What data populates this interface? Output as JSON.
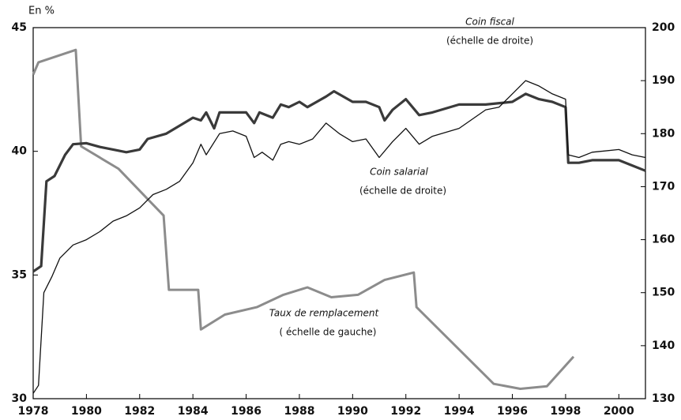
{
  "chart_data": {
    "type": "line",
    "y_label": "En %",
    "xlim": [
      1978,
      2001
    ],
    "xticks": [
      1978,
      1980,
      1982,
      1984,
      1986,
      1988,
      1990,
      1992,
      1994,
      1996,
      1998,
      2000
    ],
    "ylim": [
      30,
      45
    ],
    "yticks": [
      30,
      35,
      40,
      45
    ],
    "y2lim": [
      130,
      200
    ],
    "y2ticks": [
      130,
      140,
      150,
      160,
      170,
      180,
      190,
      200
    ],
    "annotations": [
      "Coin fiscal",
      "(échelle de droite)",
      "Coin salarial",
      "(échelle de droite)",
      "Taux de remplacement",
      "( échelle de gauche)"
    ],
    "series": [
      {
        "name": "Taux de remplacement",
        "color": "#8c8c8c",
        "width": 3,
        "axis": "y",
        "x": [
          1978,
          1978.2,
          1979.6,
          1979.8,
          1981.2,
          1982.9,
          1983.1,
          1984.2,
          1984.3,
          1985.2,
          1986.4,
          1987.4,
          1988.3,
          1989.2,
          1990.2,
          1991.2,
          1992.3,
          1992.4,
          1995.3,
          1996.3,
          1997.3,
          1998.3
        ],
        "values": [
          43.1,
          43.6,
          44.1,
          40.2,
          39.3,
          37.4,
          34.4,
          34.4,
          32.8,
          33.4,
          33.7,
          34.2,
          34.5,
          34.1,
          34.2,
          34.8,
          35.1,
          33.7,
          30.6,
          30.4,
          30.5,
          31.7
        ]
      },
      {
        "name": "Coin fiscal",
        "color": "#3a3a3a",
        "width": 3.2,
        "axis": "y2",
        "x": [
          1978,
          1978.3,
          1978.5,
          1978.8,
          1979.2,
          1979.5,
          1980,
          1980.5,
          1981,
          1981.5,
          1982,
          1982.3,
          1983,
          1983.5,
          1984,
          1984.3,
          1984.5,
          1984.8,
          1985,
          1986,
          1986.3,
          1986.5,
          1987,
          1987.3,
          1987.6,
          1988,
          1988.3,
          1989,
          1989.3,
          1990,
          1990.5,
          1991,
          1991.2,
          1991.5,
          1992,
          1992.5,
          1993,
          1994,
          1995,
          1996,
          1996.5,
          1997,
          1997.5,
          1998,
          1998.1,
          1998.5,
          1999,
          2000,
          2000.5,
          2001
        ],
        "values": [
          154,
          155,
          171,
          172,
          176,
          178,
          178.2,
          177.5,
          177,
          176.5,
          177,
          179,
          180,
          181.5,
          183,
          182.5,
          184,
          181,
          184,
          184,
          182,
          184,
          183,
          185.5,
          185,
          186,
          185,
          187,
          188,
          186,
          186,
          185,
          182.5,
          184.5,
          186.5,
          183.5,
          184,
          185.5,
          185.5,
          186,
          187.5,
          186.5,
          186,
          185,
          174.5,
          174.5,
          175,
          175,
          174,
          173
        ]
      },
      {
        "name": "Coin salarial",
        "color": "#111111",
        "width": 1.3,
        "axis": "y2",
        "x": [
          1978,
          1978.2,
          1978.4,
          1978.7,
          1979,
          1979.5,
          1980,
          1980.5,
          1981,
          1981.5,
          1982,
          1982.5,
          1983,
          1983.5,
          1984,
          1984.3,
          1984.5,
          1985,
          1985.5,
          1986,
          1986.3,
          1986.6,
          1987,
          1987.3,
          1987.6,
          1988,
          1988.5,
          1989,
          1989.5,
          1990,
          1990.5,
          1991,
          1991.5,
          1992,
          1992.5,
          1993,
          1994,
          1995,
          1995.5,
          1996,
          1996.5,
          1997,
          1997.5,
          1998,
          1998.1,
          1998.5,
          1999,
          2000,
          2000.5,
          2001
        ],
        "values": [
          131,
          132.5,
          150,
          153,
          156.5,
          159,
          160,
          161.5,
          163.5,
          164.5,
          166,
          168.5,
          169.5,
          171,
          174.5,
          178,
          176,
          180,
          180.5,
          179.5,
          175.5,
          176.5,
          175,
          178,
          178.5,
          178,
          179,
          182,
          180,
          178.5,
          179,
          175.5,
          178.5,
          181,
          178,
          179.5,
          181,
          184.5,
          185,
          187.5,
          190,
          189,
          187.5,
          186.5,
          176,
          175.5,
          176.5,
          177,
          176,
          175.5
        ]
      }
    ]
  }
}
